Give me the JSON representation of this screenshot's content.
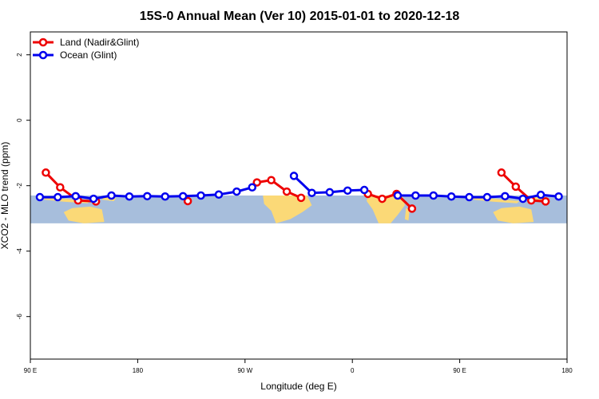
{
  "chart_data": {
    "type": "line",
    "title": "15S-0 Annual Mean (Ver 10)   2015-01-01 to 2020-12-18",
    "xlabel": "Longitude (deg E)",
    "ylabel": "XCO2 - MLO trend (ppm)",
    "xlim": [
      90,
      540
    ],
    "ylim": [
      -7.3,
      2.7
    ],
    "x_ticks": [
      90,
      180,
      270,
      360,
      450,
      540
    ],
    "x_tick_labels": [
      "90 E",
      "180",
      "90 W",
      "0",
      "90 E",
      "180"
    ],
    "y_ticks": [
      2,
      0,
      -2,
      -4,
      -6
    ],
    "y_tick_labels": [
      "2",
      "0",
      "-2",
      "-4",
      "-6"
    ],
    "legend_position": "top-left",
    "map_band": {
      "y_top": -2.3,
      "y_bottom": -3.15,
      "ocean_color": "#a7bedc",
      "land_color": "#fbd977"
    },
    "series": [
      {
        "name": "Land (Nadir&Glint)",
        "color": "#ee0000",
        "segments": [
          [
            [
              103,
              -1.6
            ],
            [
              115,
              -2.05
            ],
            [
              130,
              -2.45
            ],
            [
              145,
              -2.48
            ]
          ],
          [
            [
              222,
              -2.47
            ]
          ],
          [
            [
              280,
              -1.9
            ],
            [
              292,
              -1.83
            ],
            [
              305,
              -2.18
            ],
            [
              317,
              -2.37
            ]
          ],
          [
            [
              373,
              -2.25
            ],
            [
              385,
              -2.4
            ],
            [
              397,
              -2.25
            ],
            [
              410,
              -2.7
            ]
          ],
          [
            [
              485,
              -1.6
            ],
            [
              497,
              -2.03
            ],
            [
              510,
              -2.45
            ],
            [
              522,
              -2.48
            ]
          ]
        ]
      },
      {
        "name": "Ocean (Glint)",
        "color": "#0000ee",
        "segments": [
          [
            [
              98,
              -2.35
            ],
            [
              113,
              -2.35
            ],
            [
              128,
              -2.32
            ],
            [
              143,
              -2.4
            ],
            [
              158,
              -2.3
            ],
            [
              173,
              -2.33
            ],
            [
              188,
              -2.32
            ],
            [
              203,
              -2.33
            ],
            [
              218,
              -2.32
            ],
            [
              233,
              -2.3
            ],
            [
              248,
              -2.27
            ],
            [
              263,
              -2.18
            ],
            [
              276,
              -2.05
            ]
          ],
          [
            [
              311,
              -1.7
            ],
            [
              326,
              -2.22
            ],
            [
              341,
              -2.2
            ],
            [
              356,
              -2.15
            ],
            [
              370,
              -2.13
            ]
          ],
          [
            [
              398,
              -2.3
            ],
            [
              413,
              -2.3
            ],
            [
              428,
              -2.3
            ],
            [
              443,
              -2.33
            ],
            [
              458,
              -2.35
            ],
            [
              473,
              -2.35
            ],
            [
              488,
              -2.32
            ],
            [
              503,
              -2.4
            ],
            [
              518,
              -2.28
            ],
            [
              533,
              -2.33
            ]
          ]
        ]
      }
    ]
  }
}
